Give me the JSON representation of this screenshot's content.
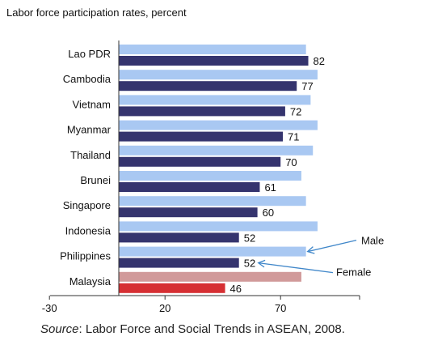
{
  "chart_data": {
    "type": "bar",
    "orientation": "horizontal",
    "title": "Labor force participation rates, percent",
    "categories": [
      "Lao PDR",
      "Cambodia",
      "Vietnam",
      "Myanmar",
      "Thailand",
      "Brunei",
      "Singapore",
      "Indonesia",
      "Philippines",
      "Malaysia"
    ],
    "series": [
      {
        "name": "Male",
        "values": [
          81,
          86,
          83,
          86,
          84,
          79,
          81,
          86,
          81,
          79
        ],
        "show_labels": false
      },
      {
        "name": "Female",
        "values": [
          82,
          77,
          72,
          71,
          70,
          61,
          60,
          52,
          52,
          46
        ],
        "show_labels": true
      }
    ],
    "xlim": [
      -30,
      100
    ],
    "xticks": [
      "-30",
      "20",
      "70"
    ],
    "xtick_values": [
      -30,
      20,
      70
    ],
    "grid": false,
    "legend": "annotation arrows at right",
    "colors": {
      "male": "#a9c8f2",
      "female": "#35346e",
      "malaysia_male": "#d19a9a",
      "malaysia_female": "#d62f33",
      "arrow": "#3f86c9"
    }
  },
  "source": {
    "label": "Source",
    "text": ": Labor Force and Social Trends in ASEAN, 2008."
  }
}
